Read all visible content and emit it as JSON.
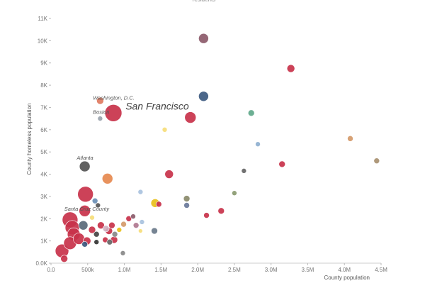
{
  "chart_data": {
    "type": "scatter",
    "title": "residents",
    "xlabel": "County population",
    "ylabel": "County homeless population",
    "xlim": [
      0,
      4500000
    ],
    "ylim": [
      0,
      11000
    ],
    "x_ticks": [
      {
        "value": 0,
        "label": "0.0"
      },
      {
        "value": 500000,
        "label": "500k"
      },
      {
        "value": 1000000,
        "label": "1.0M"
      },
      {
        "value": 1500000,
        "label": "1.5M"
      },
      {
        "value": 2000000,
        "label": "2.0M"
      },
      {
        "value": 2500000,
        "label": "2.5M"
      },
      {
        "value": 3000000,
        "label": "3.0M"
      },
      {
        "value": 3500000,
        "label": "3.5M"
      },
      {
        "value": 4000000,
        "label": "4.0M"
      },
      {
        "value": 4500000,
        "label": "4.5M"
      }
    ],
    "y_ticks": [
      {
        "value": 0,
        "label": "0.0K"
      },
      {
        "value": 1000,
        "label": "1K"
      },
      {
        "value": 2000,
        "label": "2K"
      },
      {
        "value": 3000,
        "label": "3K"
      },
      {
        "value": 4000,
        "label": "4K"
      },
      {
        "value": 5000,
        "label": "5K"
      },
      {
        "value": 6000,
        "label": "6K"
      },
      {
        "value": 7000,
        "label": "7K"
      },
      {
        "value": 8000,
        "label": "8K"
      },
      {
        "value": 9000,
        "label": "9K"
      },
      {
        "value": 10000,
        "label": "10K"
      },
      {
        "value": 11000,
        "label": "11K"
      }
    ],
    "grid": false,
    "legend": "none",
    "size_encoding": "homeless per resident",
    "annotations": [
      {
        "text": "Washington, D.C.",
        "x": 590000,
        "y": 7100,
        "size": "small"
      },
      {
        "text": "San Francisco",
        "x": 900000,
        "y": 6750,
        "size": "large"
      },
      {
        "text": "Boston",
        "x": 590000,
        "y": 6450,
        "size": "small"
      },
      {
        "text": "Atlanta",
        "x": 370000,
        "y": 4400,
        "size": "small"
      },
      {
        "text": "Santa Cruz County",
        "x": 200000,
        "y": 2100,
        "size": "small"
      }
    ],
    "points": [
      {
        "x": 2080000,
        "y": 10100,
        "r": 7,
        "color": "#8c5a6a"
      },
      {
        "x": 3270000,
        "y": 8750,
        "r": 5.5,
        "color": "#c8324a"
      },
      {
        "x": 2080000,
        "y": 7500,
        "r": 7,
        "color": "#3d5a80"
      },
      {
        "x": 670000,
        "y": 7300,
        "r": 5,
        "color": "#e07a5f"
      },
      {
        "x": 850000,
        "y": 6750,
        "r": 12,
        "color": "#c8324a"
      },
      {
        "x": 1900000,
        "y": 6550,
        "r": 8,
        "color": "#c8324a"
      },
      {
        "x": 2730000,
        "y": 6750,
        "r": 4.5,
        "color": "#5fa88a"
      },
      {
        "x": 670000,
        "y": 6500,
        "r": 3.5,
        "color": "#9aa3ad"
      },
      {
        "x": 1550000,
        "y": 6000,
        "r": 3.5,
        "color": "#f6dd7a"
      },
      {
        "x": 4080000,
        "y": 5600,
        "r": 4,
        "color": "#d49a6a"
      },
      {
        "x": 2820000,
        "y": 5350,
        "r": 3.5,
        "color": "#8fb0d0"
      },
      {
        "x": 4440000,
        "y": 4600,
        "r": 4,
        "color": "#a89070"
      },
      {
        "x": 3150000,
        "y": 4450,
        "r": 4.5,
        "color": "#c8324a"
      },
      {
        "x": 2630000,
        "y": 4150,
        "r": 3.5,
        "color": "#666666"
      },
      {
        "x": 1610000,
        "y": 4000,
        "r": 6,
        "color": "#c8324a"
      },
      {
        "x": 460000,
        "y": 4350,
        "r": 7.5,
        "color": "#555555"
      },
      {
        "x": 770000,
        "y": 3800,
        "r": 7.5,
        "color": "#e6894f"
      },
      {
        "x": 470000,
        "y": 3100,
        "r": 11,
        "color": "#c8324a"
      },
      {
        "x": 1220000,
        "y": 3200,
        "r": 3.5,
        "color": "#a9c2de"
      },
      {
        "x": 2500000,
        "y": 3150,
        "r": 3.5,
        "color": "#8a9a70"
      },
      {
        "x": 1850000,
        "y": 2900,
        "r": 4.5,
        "color": "#8a8a6a"
      },
      {
        "x": 600000,
        "y": 2800,
        "r": 4,
        "color": "#6a8fb5"
      },
      {
        "x": 640000,
        "y": 2600,
        "r": 3.5,
        "color": "#555555"
      },
      {
        "x": 1420000,
        "y": 2700,
        "r": 6,
        "color": "#e8c01a"
      },
      {
        "x": 1470000,
        "y": 2650,
        "r": 4,
        "color": "#c8324a"
      },
      {
        "x": 1850000,
        "y": 2600,
        "r": 4,
        "color": "#6a7a9a"
      },
      {
        "x": 2320000,
        "y": 2350,
        "r": 4.5,
        "color": "#c8324a"
      },
      {
        "x": 2120000,
        "y": 2150,
        "r": 4,
        "color": "#c8324a"
      },
      {
        "x": 460000,
        "y": 2350,
        "r": 8,
        "color": "#c8324a"
      },
      {
        "x": 260000,
        "y": 1950,
        "r": 11,
        "color": "#c8324a"
      },
      {
        "x": 290000,
        "y": 1600,
        "r": 10,
        "color": "#c8324a"
      },
      {
        "x": 310000,
        "y": 1300,
        "r": 9,
        "color": "#c8324a"
      },
      {
        "x": 440000,
        "y": 1700,
        "r": 6.5,
        "color": "#5a6a7a"
      },
      {
        "x": 560000,
        "y": 1500,
        "r": 5,
        "color": "#c8324a"
      },
      {
        "x": 620000,
        "y": 1300,
        "r": 4,
        "color": "#444444"
      },
      {
        "x": 680000,
        "y": 1700,
        "r": 5,
        "color": "#c8324a"
      },
      {
        "x": 750000,
        "y": 1550,
        "r": 4.5,
        "color": "#d0b0c0"
      },
      {
        "x": 790000,
        "y": 1450,
        "r": 5,
        "color": "#c8324a"
      },
      {
        "x": 830000,
        "y": 1700,
        "r": 4.5,
        "color": "#c8324a"
      },
      {
        "x": 870000,
        "y": 1300,
        "r": 4,
        "color": "#888888"
      },
      {
        "x": 930000,
        "y": 1500,
        "r": 3.5,
        "color": "#e8c01a"
      },
      {
        "x": 990000,
        "y": 1750,
        "r": 4,
        "color": "#d49a6a"
      },
      {
        "x": 1060000,
        "y": 2000,
        "r": 4,
        "color": "#c8324a"
      },
      {
        "x": 1120000,
        "y": 2100,
        "r": 3.5,
        "color": "#8a5a6a"
      },
      {
        "x": 1160000,
        "y": 1700,
        "r": 4,
        "color": "#b07890"
      },
      {
        "x": 1240000,
        "y": 1850,
        "r": 3.5,
        "color": "#a9c2de"
      },
      {
        "x": 1220000,
        "y": 1450,
        "r": 3,
        "color": "#f6dd7a"
      },
      {
        "x": 1410000,
        "y": 1450,
        "r": 4.5,
        "color": "#6a7a8a"
      },
      {
        "x": 380000,
        "y": 1100,
        "r": 8,
        "color": "#c8324a"
      },
      {
        "x": 490000,
        "y": 1000,
        "r": 5.5,
        "color": "#c8324a"
      },
      {
        "x": 460000,
        "y": 850,
        "r": 4,
        "color": "#3d5a80"
      },
      {
        "x": 620000,
        "y": 950,
        "r": 3.5,
        "color": "#333333"
      },
      {
        "x": 740000,
        "y": 1050,
        "r": 4,
        "color": "#c8324a"
      },
      {
        "x": 800000,
        "y": 950,
        "r": 4,
        "color": "#666666"
      },
      {
        "x": 860000,
        "y": 1050,
        "r": 5,
        "color": "#c8324a"
      },
      {
        "x": 260000,
        "y": 900,
        "r": 9,
        "color": "#c8324a"
      },
      {
        "x": 150000,
        "y": 550,
        "r": 9.5,
        "color": "#c8324a"
      },
      {
        "x": 180000,
        "y": 200,
        "r": 5,
        "color": "#c8324a"
      },
      {
        "x": 980000,
        "y": 450,
        "r": 3.5,
        "color": "#888888"
      },
      {
        "x": 560000,
        "y": 2050,
        "r": 3.5,
        "color": "#f6dd7a"
      }
    ]
  }
}
